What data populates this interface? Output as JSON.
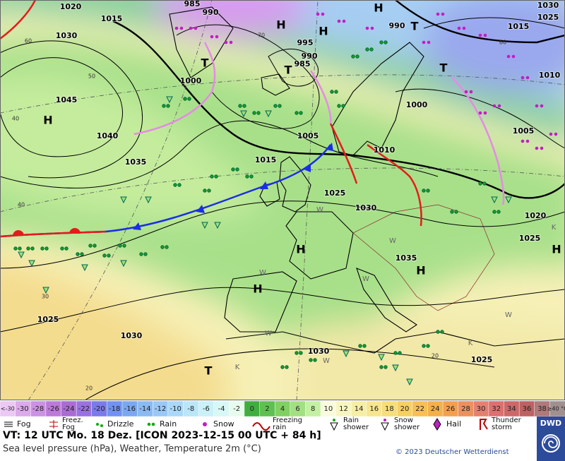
{
  "map": {
    "pressure_labels": [
      "1020",
      "1015",
      "985",
      "990",
      "1030",
      "995",
      "990",
      "985",
      "990",
      "1000",
      "1045",
      "1040",
      "1035",
      "1005",
      "1015",
      "1010",
      "1025",
      "1030",
      "1000",
      "1005",
      "1030",
      "1025",
      "1015",
      "1010",
      "1020",
      "1025",
      "1035",
      "1025",
      "1030",
      "1030",
      "1025"
    ],
    "centers": [
      "H",
      "H",
      "H",
      "T",
      "T",
      "T",
      "T",
      "H",
      "H",
      "H",
      "H",
      "H",
      "T"
    ],
    "isotherm_labels": [
      "60",
      "50",
      "40",
      "40",
      "70",
      "20",
      "30",
      "20",
      "60"
    ],
    "misc_labels": [
      "W",
      "W",
      "W",
      "W",
      "W",
      "W",
      "W",
      "K",
      "K",
      "K"
    ]
  },
  "color_scale": {
    "labels": [
      "<-30",
      "-30",
      "-28",
      "-26",
      "-24",
      "-22",
      "-20",
      "-18",
      "-16",
      "-14",
      "-12",
      "-10",
      "-8",
      "-6",
      "-4",
      "-2",
      "0",
      "2",
      "4",
      "6",
      "8",
      "10",
      "12",
      "14",
      "16",
      "18",
      "20",
      "22",
      "24",
      "26",
      "28",
      "30",
      "32",
      "34",
      "36",
      "38",
      "≥40 °C"
    ],
    "colors": [
      "#ecc8f4",
      "#dcaaea",
      "#cc92e2",
      "#bc7ad8",
      "#aa6cd2",
      "#9a72e0",
      "#7a7ae8",
      "#7292f0",
      "#7aa8f0",
      "#8abaf2",
      "#9ac8f6",
      "#aad8f8",
      "#bae6f8",
      "#caf0f8",
      "#d8f8f6",
      "#e8fcee",
      "#3fae3f",
      "#5ec050",
      "#80d062",
      "#a2e082",
      "#c4f0a2",
      "#fafade",
      "#f8f6c0",
      "#f6eea6",
      "#f6e690",
      "#f6de78",
      "#f6d062",
      "#f6c052",
      "#f4b04a",
      "#f2a050",
      "#ec9060",
      "#e48070",
      "#dc7070",
      "#cc6868",
      "#bc6262",
      "#ae7a7a",
      "#a09090"
    ]
  },
  "legend": [
    {
      "lines": [
        "Fog"
      ]
    },
    {
      "lines": [
        "Freez.",
        "Fog"
      ]
    },
    {
      "lines": [
        "Drizzle"
      ]
    },
    {
      "lines": [
        "Rain"
      ]
    },
    {
      "lines": [
        "Snow"
      ]
    },
    {
      "lines": [
        "Freezing",
        "rain"
      ]
    },
    {
      "lines": [
        "Rain",
        "shower"
      ]
    },
    {
      "lines": [
        "Snow",
        "shower"
      ]
    },
    {
      "lines": [
        "Hail"
      ]
    },
    {
      "lines": [
        "Thunder",
        "storm"
      ]
    }
  ],
  "footer": {
    "valid_time": "VT: 12 UTC Mo.  18 Dez. [ICON 2023-12-15  00 UTC + 84 h]",
    "description": "Sea level pressure (hPa), Weather, Temperature 2m (°C)",
    "copyright": "© 2023 Deutscher Wetterdienst",
    "logo": "DWD"
  }
}
